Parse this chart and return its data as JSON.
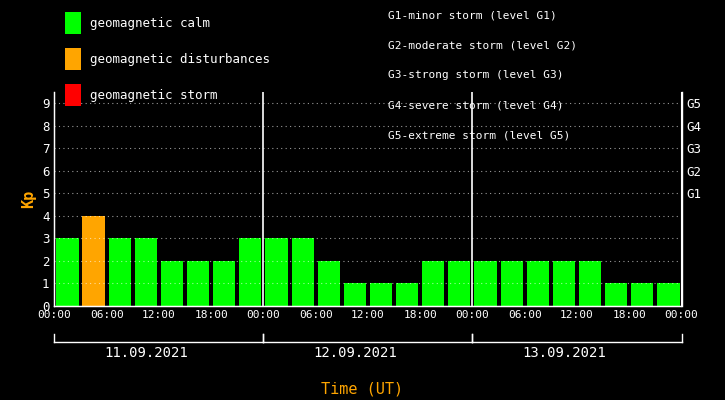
{
  "kp_values": [
    3,
    4,
    3,
    3,
    2,
    2,
    2,
    3,
    3,
    3,
    2,
    1,
    1,
    1,
    2,
    2,
    2,
    2,
    2,
    2,
    2,
    1,
    1,
    1
  ],
  "bar_colors": [
    "#00ff00",
    "#ffa500",
    "#00ff00",
    "#00ff00",
    "#00ff00",
    "#00ff00",
    "#00ff00",
    "#00ff00",
    "#00ff00",
    "#00ff00",
    "#00ff00",
    "#00ff00",
    "#00ff00",
    "#00ff00",
    "#00ff00",
    "#00ff00",
    "#00ff00",
    "#00ff00",
    "#00ff00",
    "#00ff00",
    "#00ff00",
    "#00ff00",
    "#00ff00",
    "#00ff00"
  ],
  "background_color": "#000000",
  "plot_bg_color": "#000000",
  "text_color": "#ffffff",
  "axis_color": "#ffffff",
  "grid_color": "#ffffff",
  "bar_width": 0.85,
  "ylim": [
    0,
    9.5
  ],
  "yticks": [
    0,
    1,
    2,
    3,
    4,
    5,
    6,
    7,
    8,
    9
  ],
  "ylabel": "Kp",
  "ylabel_color": "#ffa500",
  "xlabel": "Time (UT)",
  "xlabel_color": "#ffa500",
  "day_labels": [
    "11.09.2021",
    "12.09.2021",
    "13.09.2021"
  ],
  "right_axis_labels": [
    "G1",
    "G2",
    "G3",
    "G4",
    "G5"
  ],
  "right_axis_ticks": [
    5,
    6,
    7,
    8,
    9
  ],
  "legend_items": [
    {
      "label": "geomagnetic calm",
      "color": "#00ff00"
    },
    {
      "label": "geomagnetic disturbances",
      "color": "#ffa500"
    },
    {
      "label": "geomagnetic storm",
      "color": "#ff0000"
    }
  ],
  "legend_text_color": "#ffffff",
  "right_info_lines": [
    "G1-minor storm (level G1)",
    "G2-moderate storm (level G2)",
    "G3-strong storm (level G3)",
    "G4-severe storm (level G4)",
    "G5-extreme storm (level G5)"
  ],
  "vline_positions": [
    8,
    16
  ],
  "num_bars": 24,
  "font_family": "monospace"
}
